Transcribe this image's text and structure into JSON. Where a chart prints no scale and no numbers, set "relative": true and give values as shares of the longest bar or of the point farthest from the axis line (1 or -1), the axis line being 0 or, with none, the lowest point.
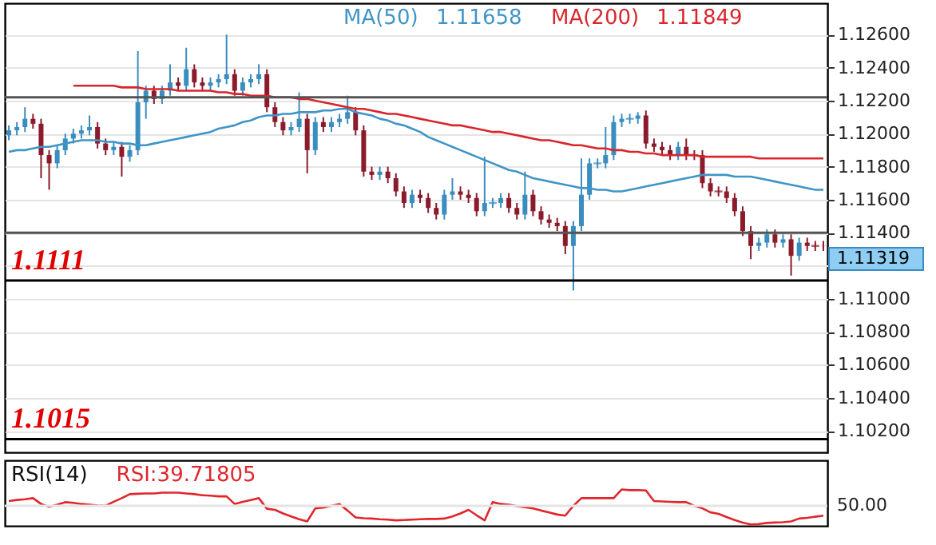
{
  "chart_data": [
    {
      "type": "candlestick",
      "categories": [
        null,
        null,
        null,
        null,
        null,
        null,
        null,
        null,
        null,
        null,
        null,
        null,
        null,
        null,
        null,
        null,
        null,
        null,
        null,
        null,
        null,
        null,
        null,
        null,
        null,
        null,
        null,
        null,
        null,
        null,
        null,
        null,
        null,
        null,
        null,
        null,
        null,
        null,
        null,
        null,
        null,
        null,
        null,
        null,
        null,
        null,
        null,
        null,
        null,
        null,
        null,
        null,
        null,
        null,
        null,
        null,
        null,
        null,
        null,
        null,
        null,
        null,
        null,
        null,
        null,
        null,
        null,
        null,
        null,
        null,
        null,
        null,
        null,
        null,
        null,
        null,
        null,
        null,
        null,
        null,
        null,
        null,
        null,
        null,
        null,
        null,
        null,
        null,
        null,
        null,
        null,
        null,
        null,
        null,
        null,
        null,
        null,
        null,
        null,
        null,
        null,
        null
      ],
      "ohlc": [
        [
          1.1199,
          1.1205,
          1.1196,
          1.1202
        ],
        [
          1.1202,
          1.1207,
          1.1199,
          1.1204
        ],
        [
          1.1204,
          1.1216,
          1.1201,
          1.1209
        ],
        [
          1.1209,
          1.1212,
          1.1203,
          1.1206
        ],
        [
          1.1206,
          1.1209,
          1.1173,
          1.1187
        ],
        [
          1.1187,
          1.119,
          1.1166,
          1.1182
        ],
        [
          1.1182,
          1.1193,
          1.1179,
          1.119
        ],
        [
          1.119,
          1.12,
          1.1187,
          1.1197
        ],
        [
          1.1197,
          1.1203,
          1.1194,
          1.12
        ],
        [
          1.12,
          1.1205,
          1.1197,
          1.1202
        ],
        [
          1.1202,
          1.1211,
          1.1199,
          1.1204
        ],
        [
          1.1204,
          1.1207,
          1.1191,
          1.1194
        ],
        [
          1.1194,
          1.1197,
          1.1187,
          1.119
        ],
        [
          1.119,
          1.1195,
          1.1187,
          1.1192
        ],
        [
          1.1192,
          1.1195,
          1.1174,
          1.1186
        ],
        [
          1.1186,
          1.1193,
          1.1183,
          1.119
        ],
        [
          1.119,
          1.125,
          1.1187,
          1.1219
        ],
        [
          1.1219,
          1.1229,
          1.1209,
          1.1226
        ],
        [
          1.1226,
          1.1229,
          1.1218,
          1.1221
        ],
        [
          1.1221,
          1.1229,
          1.1218,
          1.1226
        ],
        [
          1.1226,
          1.1242,
          1.1223,
          1.1231
        ],
        [
          1.1231,
          1.1234,
          1.1226,
          1.1229
        ],
        [
          1.1229,
          1.1252,
          1.1226,
          1.1239
        ],
        [
          1.1239,
          1.1242,
          1.1228,
          1.1231
        ],
        [
          1.1231,
          1.1234,
          1.1226,
          1.1229
        ],
        [
          1.1229,
          1.1234,
          1.1226,
          1.1231
        ],
        [
          1.1231,
          1.1236,
          1.1228,
          1.1233
        ],
        [
          1.1233,
          1.126,
          1.123,
          1.1236
        ],
        [
          1.1236,
          1.1239,
          1.1223,
          1.1226
        ],
        [
          1.1226,
          1.1234,
          1.1223,
          1.1231
        ],
        [
          1.1231,
          1.1236,
          1.1228,
          1.1233
        ],
        [
          1.1233,
          1.1242,
          1.123,
          1.1236
        ],
        [
          1.1236,
          1.1239,
          1.1213,
          1.1216
        ],
        [
          1.1216,
          1.1219,
          1.1204,
          1.1207
        ],
        [
          1.1207,
          1.121,
          1.1199,
          1.1202
        ],
        [
          1.1202,
          1.1207,
          1.1199,
          1.1204
        ],
        [
          1.1204,
          1.1225,
          1.1201,
          1.1209
        ],
        [
          1.1209,
          1.1212,
          1.1176,
          1.119
        ],
        [
          1.119,
          1.121,
          1.1187,
          1.1207
        ],
        [
          1.1207,
          1.121,
          1.1201,
          1.1204
        ],
        [
          1.1204,
          1.121,
          1.1201,
          1.1207
        ],
        [
          1.1207,
          1.1212,
          1.1204,
          1.1209
        ],
        [
          1.1209,
          1.1223,
          1.1206,
          1.1213
        ],
        [
          1.1213,
          1.1216,
          1.1199,
          1.1202
        ],
        [
          1.1202,
          1.1205,
          1.1174,
          1.1177
        ],
        [
          1.1177,
          1.118,
          1.1172,
          1.1175
        ],
        [
          1.1175,
          1.118,
          1.1172,
          1.1177
        ],
        [
          1.1177,
          1.118,
          1.117,
          1.1173
        ],
        [
          1.1173,
          1.1176,
          1.1162,
          1.1165
        ],
        [
          1.1165,
          1.1168,
          1.1155,
          1.1158
        ],
        [
          1.1158,
          1.1166,
          1.1155,
          1.1163
        ],
        [
          1.1163,
          1.1166,
          1.1158,
          1.1161
        ],
        [
          1.1161,
          1.1164,
          1.1152,
          1.1155
        ],
        [
          1.1155,
          1.1158,
          1.1148,
          1.1151
        ],
        [
          1.1151,
          1.1166,
          1.1148,
          1.1163
        ],
        [
          1.1163,
          1.1173,
          1.116,
          1.1165
        ],
        [
          1.1165,
          1.1168,
          1.116,
          1.1163
        ],
        [
          1.1163,
          1.1166,
          1.1158,
          1.1161
        ],
        [
          1.1161,
          1.1164,
          1.115,
          1.1153
        ],
        [
          1.1153,
          1.1186,
          1.115,
          1.1158
        ],
        [
          1.1158,
          1.1161,
          1.1155,
          1.1158
        ],
        [
          1.1158,
          1.1164,
          1.1155,
          1.1161
        ],
        [
          1.1161,
          1.1164,
          1.1152,
          1.1155
        ],
        [
          1.1155,
          1.1158,
          1.1148,
          1.1151
        ],
        [
          1.1151,
          1.1177,
          1.1148,
          1.1163
        ],
        [
          1.1163,
          1.1166,
          1.115,
          1.1153
        ],
        [
          1.1153,
          1.1156,
          1.1145,
          1.1148
        ],
        [
          1.1148,
          1.1151,
          1.1143,
          1.1146
        ],
        [
          1.1146,
          1.1149,
          1.1141,
          1.1144
        ],
        [
          1.1144,
          1.1147,
          1.1127,
          1.1132
        ],
        [
          1.1132,
          1.1147,
          1.1105,
          1.1144
        ],
        [
          1.1144,
          1.1185,
          1.1141,
          1.1163
        ],
        [
          1.1163,
          1.1185,
          1.116,
          1.1182
        ],
        [
          1.1182,
          1.1185,
          1.1179,
          1.1182
        ],
        [
          1.1182,
          1.1204,
          1.1179,
          1.1187
        ],
        [
          1.1187,
          1.1211,
          1.1184,
          1.1207
        ],
        [
          1.1207,
          1.1212,
          1.1204,
          1.1209
        ],
        [
          1.1209,
          1.1212,
          1.1206,
          1.1209
        ],
        [
          1.1209,
          1.1213,
          1.1206,
          1.1211
        ],
        [
          1.1211,
          1.1214,
          1.1191,
          1.1194
        ],
        [
          1.1194,
          1.1197,
          1.1189,
          1.1192
        ],
        [
          1.1192,
          1.1195,
          1.1187,
          1.119
        ],
        [
          1.119,
          1.1193,
          1.1184,
          1.1187
        ],
        [
          1.1187,
          1.1195,
          1.1184,
          1.1192
        ],
        [
          1.1192,
          1.1197,
          1.1184,
          1.1187
        ],
        [
          1.1187,
          1.119,
          1.1184,
          1.1187
        ],
        [
          1.1187,
          1.119,
          1.1167,
          1.117
        ],
        [
          1.117,
          1.1173,
          1.1162,
          1.1165
        ],
        [
          1.1165,
          1.1168,
          1.1162,
          1.1165
        ],
        [
          1.1165,
          1.1168,
          1.1158,
          1.1161
        ],
        [
          1.1161,
          1.1164,
          1.115,
          1.1153
        ],
        [
          1.1153,
          1.1156,
          1.1138,
          1.1141
        ],
        [
          1.1141,
          1.1144,
          1.1124,
          1.1132
        ],
        [
          1.1132,
          1.1137,
          1.1129,
          1.1134
        ],
        [
          1.1134,
          1.1142,
          1.1131,
          1.1139
        ],
        [
          1.1139,
          1.1142,
          1.1131,
          1.1134
        ],
        [
          1.1134,
          1.1139,
          1.1131,
          1.1136
        ],
        [
          1.1136,
          1.1139,
          1.1114,
          1.1126
        ],
        [
          1.1126,
          1.1137,
          1.1123,
          1.1134
        ],
        [
          1.1134,
          1.1137,
          1.1129,
          1.1132
        ],
        [
          1.1132,
          1.1135,
          1.1129,
          1.1132
        ],
        [
          1.1132,
          1.1135,
          1.1129,
          1.11319
        ]
      ],
      "colors": [
        "#3a8dbf",
        "#3a8dbf",
        "#3a8dbf",
        "#8b1a2b",
        "#8b1a2b",
        "#8b1a2b",
        "#3a8dbf",
        "#3a8dbf",
        "#3a8dbf",
        "#3a8dbf",
        "#3a8dbf",
        "#8b1a2b",
        "#8b1a2b",
        "#3a8dbf",
        "#8b1a2b",
        "#3a8dbf",
        "#3a8dbf",
        "#3a8dbf",
        "#8b1a2b",
        "#3a8dbf",
        "#3a8dbf",
        "#8b1a2b",
        "#3a8dbf",
        "#8b1a2b",
        "#8b1a2b",
        "#3a8dbf",
        "#3a8dbf",
        "#3a8dbf",
        "#8b1a2b",
        "#3a8dbf",
        "#3a8dbf",
        "#3a8dbf",
        "#8b1a2b",
        "#8b1a2b",
        "#8b1a2b",
        "#3a8dbf",
        "#3a8dbf",
        "#8b1a2b",
        "#3a8dbf",
        "#8b1a2b",
        "#3a8dbf",
        "#3a8dbf",
        "#3a8dbf",
        "#8b1a2b",
        "#8b1a2b",
        "#8b1a2b",
        "#3a8dbf",
        "#8b1a2b",
        "#8b1a2b",
        "#8b1a2b",
        "#3a8dbf",
        "#8b1a2b",
        "#8b1a2b",
        "#8b1a2b",
        "#3a8dbf",
        "#3a8dbf",
        "#8b1a2b",
        "#8b1a2b",
        "#8b1a2b",
        "#3a8dbf",
        "#3a8dbf",
        "#3a8dbf",
        "#8b1a2b",
        "#8b1a2b",
        "#3a8dbf",
        "#8b1a2b",
        "#8b1a2b",
        "#8b1a2b",
        "#8b1a2b",
        "#8b1a2b",
        "#3a8dbf",
        "#3a8dbf",
        "#3a8dbf",
        "#3a8dbf",
        "#3a8dbf",
        "#3a8dbf",
        "#3a8dbf",
        "#3a8dbf",
        "#3a8dbf",
        "#8b1a2b",
        "#8b1a2b",
        "#8b1a2b",
        "#8b1a2b",
        "#3a8dbf",
        "#8b1a2b",
        "#8b1a2b",
        "#8b1a2b",
        "#8b1a2b",
        "#8b1a2b",
        "#8b1a2b",
        "#8b1a2b",
        "#8b1a2b",
        "#8b1a2b",
        "#3a8dbf",
        "#3a8dbf",
        "#8b1a2b",
        "#3a8dbf",
        "#8b1a2b",
        "#3a8dbf",
        "#8b1a2b",
        "#8b1a2b",
        "#8b1a2b"
      ],
      "series": [
        {
          "name": "MA(50)",
          "type": "line",
          "color": "#3f95c6",
          "values": [
            1.1189,
            1.119,
            1.119,
            1.1191,
            1.1192,
            1.1192,
            1.1193,
            1.1194,
            1.1195,
            1.1196,
            1.1196,
            1.1196,
            1.1195,
            1.1195,
            1.1194,
            1.1194,
            1.1193,
            1.1193,
            1.1194,
            1.1195,
            1.1196,
            1.1197,
            1.1198,
            1.1199,
            1.12,
            1.1201,
            1.1203,
            1.1204,
            1.1205,
            1.1207,
            1.1208,
            1.121,
            1.1211,
            1.1211,
            1.1212,
            1.1212,
            1.1213,
            1.1213,
            1.1213,
            1.1214,
            1.1214,
            1.1215,
            1.1215,
            1.1213,
            1.1212,
            1.1211,
            1.1209,
            1.1208,
            1.1206,
            1.1205,
            1.1203,
            1.1201,
            1.1198,
            1.1196,
            1.1194,
            1.1192,
            1.119,
            1.1188,
            1.1186,
            1.1184,
            1.1182,
            1.118,
            1.1178,
            1.1177,
            1.1175,
            1.1173,
            1.1172,
            1.1171,
            1.117,
            1.1169,
            1.1168,
            1.1167,
            1.1167,
            1.1166,
            1.1166,
            1.1165,
            1.1165,
            1.1166,
            1.1167,
            1.1168,
            1.1169,
            1.117,
            1.1171,
            1.1172,
            1.1173,
            1.1174,
            1.1175,
            1.1175,
            1.1175,
            1.1175,
            1.1174,
            1.1174,
            1.1174,
            1.1173,
            1.1172,
            1.1171,
            1.117,
            1.1169,
            1.1168,
            1.1167,
            1.1166,
            1.1166
          ]
        },
        {
          "name": "MA(200)",
          "type": "line",
          "color": "#d9262c",
          "values": [
            null,
            null,
            null,
            null,
            null,
            null,
            null,
            null,
            1.1229,
            1.1229,
            1.1229,
            1.1229,
            1.1229,
            1.1229,
            1.1228,
            1.1228,
            1.1228,
            1.1227,
            1.1227,
            1.1227,
            1.1227,
            1.1226,
            1.1226,
            1.1226,
            1.1226,
            1.1226,
            1.1225,
            1.1225,
            1.1224,
            1.1224,
            1.1223,
            1.1223,
            1.1223,
            1.1222,
            1.1222,
            1.1222,
            1.1221,
            1.1221,
            1.122,
            1.1219,
            1.1218,
            1.1217,
            1.1216,
            1.1215,
            1.1215,
            1.1214,
            1.1213,
            1.1212,
            1.1212,
            1.1211,
            1.121,
            1.1209,
            1.1208,
            1.1207,
            1.1206,
            1.1205,
            1.1205,
            1.1204,
            1.1203,
            1.1202,
            1.1201,
            1.1201,
            1.12,
            1.1199,
            1.1198,
            1.1197,
            1.1196,
            1.1196,
            1.1195,
            1.1194,
            1.1193,
            1.1193,
            1.1192,
            1.1191,
            1.1191,
            1.119,
            1.119,
            1.1189,
            1.1189,
            1.1188,
            1.1188,
            1.1187,
            1.1187,
            1.1187,
            1.1187,
            1.1187,
            1.1186,
            1.1186,
            1.1186,
            1.1186,
            1.1186,
            1.1186,
            1.1186,
            1.1185,
            1.1185,
            1.1185,
            1.1185,
            1.1185,
            1.1185,
            1.1185,
            1.1185,
            1.1185
          ]
        }
      ],
      "ylim": [
        1.1007,
        1.1279
      ],
      "yticks": [
        {
          "value": 1.102,
          "label": "1.10200"
        },
        {
          "value": 1.104,
          "label": "1.10400"
        },
        {
          "value": 1.106,
          "label": "1.10600"
        },
        {
          "value": 1.108,
          "label": "1.10800"
        },
        {
          "value": 1.11,
          "label": "1.11000"
        },
        {
          "value": 1.112,
          "label": null
        },
        {
          "value": 1.114,
          "label": "1.11400"
        },
        {
          "value": 1.116,
          "label": "1.11600"
        },
        {
          "value": 1.118,
          "label": "1.11800"
        },
        {
          "value": 1.12,
          "label": "1.12000"
        },
        {
          "value": 1.122,
          "label": "1.12200"
        },
        {
          "value": 1.124,
          "label": "1.12400"
        },
        {
          "value": 1.126,
          "label": "1.12600"
        }
      ],
      "grid": "y",
      "legend": "top",
      "tick_labels": "y",
      "ref_lines": [
        {
          "axis": "y",
          "value": 1.1222,
          "color": "#555555"
        },
        {
          "axis": "y",
          "value": 1.114,
          "color": "#555555"
        },
        {
          "axis": "y",
          "value": 1.1111,
          "label": "1.1111",
          "color": "#000000"
        },
        {
          "axis": "y",
          "value": 1.1015,
          "label": "1.1015",
          "color": "#000000"
        }
      ],
      "annotations": [
        "1.11658",
        "1.11849",
        "1.11319"
      ]
    },
    {
      "type": "line",
      "title": "RSI(14)",
      "annotations": [
        "RSI:39.71805",
        "50.00"
      ],
      "categories": [
        null,
        null,
        null,
        null,
        null,
        null,
        null,
        null,
        null,
        null,
        null,
        null,
        null,
        null,
        null,
        null,
        null,
        null,
        null,
        null,
        null,
        null,
        null,
        null,
        null,
        null,
        null,
        null,
        null,
        null,
        null,
        null,
        null,
        null,
        null,
        null,
        null,
        null,
        null,
        null,
        null,
        null,
        null,
        null,
        null,
        null,
        null,
        null,
        null,
        null,
        null,
        null,
        null,
        null,
        null,
        null,
        null,
        null,
        null,
        null,
        null,
        null,
        null,
        null,
        null,
        null,
        null,
        null,
        null,
        null,
        null,
        null,
        null,
        null,
        null,
        null,
        null,
        null,
        null,
        null,
        null,
        null,
        null,
        null,
        null,
        null,
        null,
        null,
        null,
        null,
        null,
        null,
        null,
        null,
        null,
        null,
        null,
        null,
        null,
        null,
        null,
        null
      ],
      "series": [
        {
          "color": "#e0262c",
          "values": [
            0.68,
            0.71,
            0.73,
            0.76,
            0.6,
            0.52,
            0.58,
            0.65,
            0.63,
            0.6,
            0.58,
            0.56,
            0.55,
            0.66,
            0.76,
            0.87,
            0.88,
            0.89,
            0.89,
            0.91,
            0.91,
            0.91,
            0.89,
            0.87,
            0.84,
            0.83,
            0.81,
            0.81,
            0.6,
            0.66,
            0.71,
            0.76,
            0.47,
            0.44,
            0.34,
            0.26,
            0.18,
            0.12,
            0.48,
            0.5,
            0.55,
            0.6,
            0.42,
            0.23,
            0.21,
            0.2,
            0.18,
            0.17,
            0.15,
            0.16,
            0.17,
            0.18,
            0.19,
            0.19,
            0.2,
            0.26,
            0.34,
            0.44,
            0.29,
            0.15,
            0.65,
            0.6,
            0.58,
            0.54,
            0.51,
            0.48,
            0.42,
            0.37,
            0.31,
            0.28,
            0.55,
            0.76,
            0.76,
            0.76,
            0.76,
            0.76,
            1.0,
            0.98,
            0.98,
            0.97,
            0.68,
            0.67,
            0.66,
            0.65,
            0.65,
            0.55,
            0.48,
            0.37,
            0.33,
            0.24,
            0.16,
            0.09,
            0.04,
            0.05,
            0.08,
            0.09,
            0.1,
            0.12,
            0.2,
            0.22,
            0.25,
            0.28
          ]
        }
      ],
      "relative": true,
      "ref_lines": [
        {
          "axis": "y",
          "value": 0.55,
          "color": "#e4e4e4"
        }
      ],
      "tick_labels": "y"
    }
  ]
}
